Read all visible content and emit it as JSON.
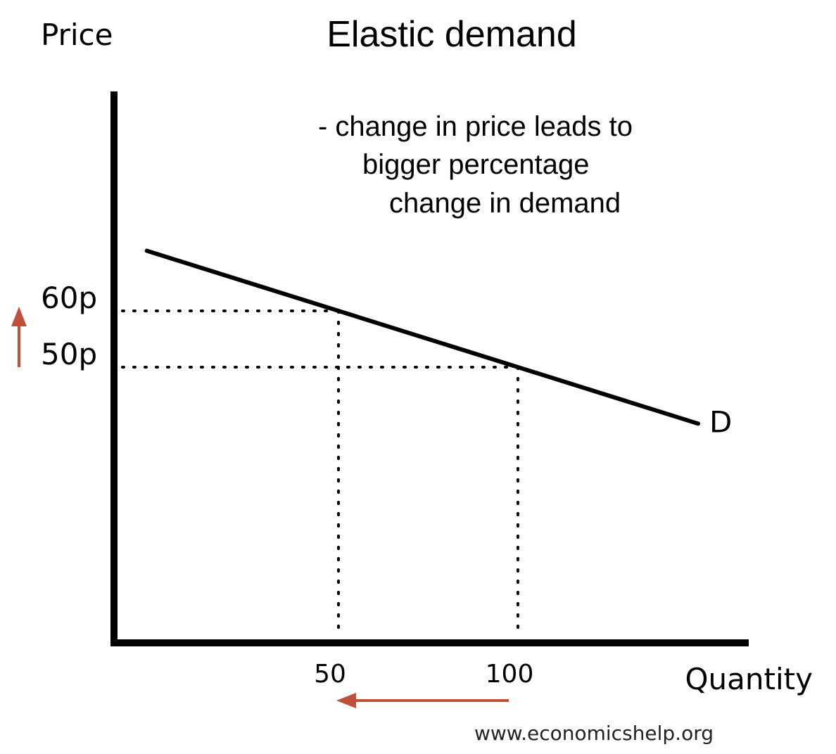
{
  "chart_data": {
    "type": "line",
    "title": "Elastic demand",
    "ylabel": "Price",
    "xlabel": "Quantity",
    "series": [
      {
        "name": "D",
        "points": [
          {
            "x": 50,
            "y": 60
          },
          {
            "x": 100,
            "y": 50
          }
        ]
      }
    ],
    "x_ticks": [
      {
        "value": 50,
        "label": "50"
      },
      {
        "value": 100,
        "label": "100"
      }
    ],
    "y_ticks": [
      {
        "value": 60,
        "label": "60p"
      },
      {
        "value": 50,
        "label": "50p"
      }
    ],
    "annotation": [
      "- change in price leads to",
      "bigger percentage",
      "change in demand"
    ],
    "arrows": {
      "price": "up",
      "quantity": "left"
    },
    "arrow_color": "#c0503c",
    "grid": false,
    "legend": "none"
  },
  "footer": {
    "source": "www.economicshelp.org"
  }
}
